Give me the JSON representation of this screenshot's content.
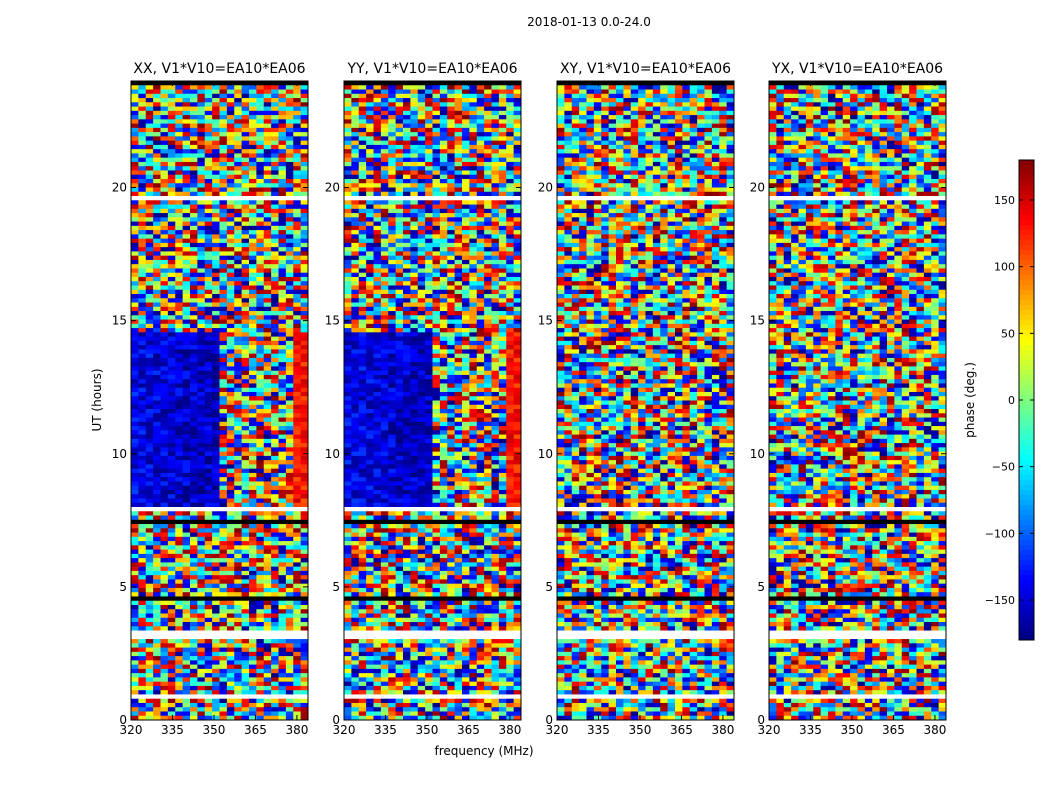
{
  "chart_data": {
    "type": "heatmap",
    "suptitle": "2018-01-13 0.0-24.0",
    "panels": [
      {
        "title": "XX, V1*V10=EA10*EA06",
        "pattern": "coherent"
      },
      {
        "title": "YY, V1*V10=EA10*EA06",
        "pattern": "coherent"
      },
      {
        "title": "XY, V1*V10=EA10*EA06",
        "pattern": "noise"
      },
      {
        "title": "YX, V1*V10=EA10*EA06",
        "pattern": "noise"
      }
    ],
    "x": {
      "label": "frequency (MHz)",
      "range": [
        320,
        384
      ],
      "ticks": [
        320,
        335,
        350,
        365,
        380
      ],
      "tick_labels": [
        "320",
        "335",
        "350",
        "365",
        "380"
      ]
    },
    "y": {
      "label": "UT (hours)",
      "range": [
        0,
        24
      ],
      "ticks": [
        0,
        5,
        10,
        15,
        20
      ],
      "tick_labels": [
        "0",
        "5",
        "10",
        "15",
        "20"
      ]
    },
    "colorbar": {
      "label": "phase (deg.)",
      "range": [
        -180,
        180
      ],
      "ticks": [
        -150,
        -100,
        -50,
        0,
        50,
        100,
        150
      ],
      "tick_labels": [
        "−150",
        "−100",
        "−50",
        "0",
        "50",
        "100",
        "150"
      ],
      "colormap": "jet"
    },
    "flagged_hours": [
      [
        3.05,
        3.35
      ],
      [
        7.65,
        7.75
      ],
      [
        7.88,
        7.98
      ],
      [
        19.45,
        19.62
      ],
      [
        22.55,
        22.62
      ],
      [
        0.85,
        0.9
      ],
      [
        5.05,
        5.12
      ]
    ],
    "dark_hours": [
      [
        2.7,
        2.8
      ],
      [
        7.35,
        7.45
      ],
      [
        9.25,
        9.3
      ],
      [
        15.05,
        15.12
      ],
      [
        18.7,
        18.78
      ],
      [
        21.4,
        21.5
      ],
      [
        23.9,
        24.0
      ],
      [
        4.55,
        4.62
      ]
    ],
    "coherent_block": {
      "hours": [
        8.0,
        14.6
      ],
      "low_freq_edge_mhz": 353,
      "high_band_mhz": [
        378,
        384
      ],
      "low_band_phase_deg": -140,
      "high_band_phase_deg": 130
    }
  }
}
